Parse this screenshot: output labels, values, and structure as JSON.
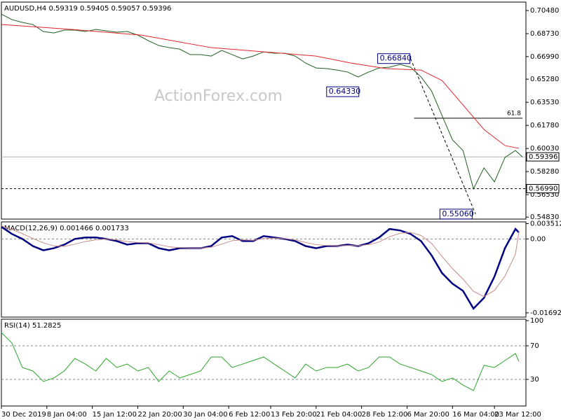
{
  "chart_data": [
    {
      "type": "line",
      "title": "AUDUSD,H4  0.59319 0.59405 0.59057 0.59396",
      "watermark": "ActionForex.com",
      "xlim": [
        0,
        150
      ],
      "ylim": [
        0.5468,
        0.7112
      ],
      "yticks": [
        {
          "value": 0.7048,
          "label": "0.70480"
        },
        {
          "value": 0.6873,
          "label": "0.68730"
        },
        {
          "value": 0.6699,
          "label": "0.66990"
        },
        {
          "value": 0.6528,
          "label": "0.65280"
        },
        {
          "value": 0.6353,
          "label": "0.63530"
        },
        {
          "value": 0.6178,
          "label": "0.61780"
        },
        {
          "value": 0.6003,
          "label": "0.60030"
        },
        {
          "value": 0.5828,
          "label": "0.58280"
        },
        {
          "value": 0.5653,
          "label": "0.56530"
        },
        {
          "value": 0.5483,
          "label": "0.54830"
        }
      ],
      "series": [
        {
          "color": "#1f5f1f",
          "width": 1,
          "x": [
            0,
            3,
            6,
            9,
            12,
            15,
            18,
            21,
            24,
            27,
            30,
            33,
            36,
            39,
            42,
            45,
            48,
            51,
            54,
            57,
            60,
            63,
            66,
            69,
            72,
            75,
            78,
            81,
            84,
            87,
            90,
            93,
            96,
            99,
            102,
            105,
            108,
            111,
            114,
            117,
            120,
            123,
            126,
            129,
            132,
            135,
            138,
            141,
            144,
            147,
            149
          ],
          "values": [
            0.7021,
            0.6979,
            0.6958,
            0.6942,
            0.6889,
            0.6878,
            0.69,
            0.69,
            0.6889,
            0.6905,
            0.6894,
            0.6884,
            0.6889,
            0.6862,
            0.682,
            0.6783,
            0.6767,
            0.6756,
            0.6714,
            0.6714,
            0.6703,
            0.6746,
            0.6714,
            0.6682,
            0.6703,
            0.6735,
            0.6725,
            0.6725,
            0.6703,
            0.665,
            0.6613,
            0.6608,
            0.6597,
            0.6582,
            0.6545,
            0.6582,
            0.6613,
            0.6619,
            0.664,
            0.6619,
            0.6545,
            0.6439,
            0.6253,
            0.6068,
            0.5988,
            0.5697,
            0.5856,
            0.575,
            0.5935,
            0.5988,
            0.59396
          ]
        },
        {
          "color": "#e0242a",
          "width": 1,
          "x": [
            0,
            20,
            40,
            60,
            80,
            90,
            100,
            110,
            120,
            126,
            132,
            138,
            144,
            148
          ],
          "values": [
            0.6942,
            0.6905,
            0.6862,
            0.6767,
            0.6725,
            0.6703,
            0.665,
            0.6608,
            0.6597,
            0.6518,
            0.6333,
            0.6147,
            0.6025,
            0.6004
          ]
        }
      ],
      "hlines": [
        {
          "value": 0.59396,
          "label": "0.59396",
          "style": "solid"
        },
        {
          "value": 0.5699,
          "label": "0.56990",
          "style": "dashed"
        }
      ],
      "annotations": [
        {
          "x": 93,
          "value": 0.6433,
          "label": "0.64330"
        },
        {
          "x": 107.6,
          "value": 0.6684,
          "label": "0.66840"
        },
        {
          "x": 125.4,
          "value": 0.5506,
          "label": "0.55060"
        }
      ],
      "zigzag": {
        "x": [
          117,
          135.6
        ],
        "values": [
          0.6684,
          0.5506
        ]
      },
      "fib": {
        "ratio": 61.8,
        "price": 0.6232,
        "x": [
          118,
          149
        ]
      }
    },
    {
      "type": "line",
      "title": "MACD(12,26,9) 0.001466 0.001733",
      "xlim": [
        0,
        150
      ],
      "ylim": [
        -0.0179,
        0.0039
      ],
      "yticks": [
        0.003512,
        {
          "value": 0,
          "label": "0.00"
        },
        -0.016921
      ],
      "levels": [
        0
      ],
      "series": [
        {
          "color": "#000080",
          "width": 2.5,
          "x": [
            0,
            3,
            6,
            9,
            12,
            15,
            18,
            21,
            24,
            27,
            30,
            33,
            36,
            39,
            42,
            45,
            48,
            51,
            54,
            57,
            60,
            63,
            66,
            69,
            72,
            75,
            78,
            81,
            84,
            87,
            90,
            93,
            96,
            99,
            102,
            105,
            108,
            111,
            114,
            117,
            120,
            123,
            126,
            129,
            132,
            135,
            138,
            141,
            144,
            147,
            148
          ],
          "values": [
            0.00277,
            0.00114,
            0,
            -0.00163,
            -0.0026,
            -0.00212,
            -0.0013,
            0,
            0.00033,
            0.00033,
            0,
            -0.00049,
            -0.0013,
            -0.00098,
            -0.00098,
            -0.00212,
            -0.0026,
            -0.00212,
            -0.00212,
            -0.00212,
            -0.00163,
            0.00033,
            0.00065,
            -0.00049,
            -0.00049,
            0.00065,
            0.00033,
            0,
            -0.00049,
            -0.00163,
            -0.00212,
            -0.00163,
            -0.00163,
            -0.0013,
            -0.00163,
            -0.00098,
            0.00033,
            0.00228,
            0.00195,
            0.00114,
            -0.00049,
            -0.00374,
            -0.00781,
            -0.01025,
            -0.01188,
            -0.01595,
            -0.0135,
            -0.00862,
            -0.00212,
            0.00228,
            0.001466
          ]
        },
        {
          "color": "#c98a8a",
          "width": 1,
          "x": [
            0,
            3,
            6,
            9,
            12,
            15,
            18,
            21,
            24,
            27,
            30,
            33,
            36,
            39,
            42,
            45,
            48,
            51,
            54,
            57,
            60,
            63,
            66,
            69,
            72,
            75,
            78,
            81,
            84,
            87,
            90,
            93,
            96,
            99,
            102,
            105,
            108,
            111,
            114,
            117,
            120,
            123,
            126,
            129,
            132,
            135,
            138,
            141,
            144,
            147,
            148
          ],
          "values": [
            0.003,
            0.0022,
            0.0012,
            0.0001,
            -0.0009,
            -0.0016,
            -0.0017,
            -0.0012,
            -0.0006,
            -0.0002,
            0,
            -0.0002,
            -0.0006,
            -0.0008,
            -0.0009,
            -0.0013,
            -0.0018,
            -0.002,
            -0.0021,
            -0.0021,
            -0.0019,
            -0.0012,
            -0.0004,
            -0.0002,
            -0.0003,
            0.0001,
            0.0002,
            0.0001,
            -0.0002,
            -0.0008,
            -0.0013,
            -0.0015,
            -0.0016,
            -0.0015,
            -0.0015,
            -0.0013,
            -0.0007,
            0.0005,
            0.0013,
            0.0015,
            0.0008,
            -0.001,
            -0.004,
            -0.0068,
            -0.0092,
            -0.012,
            -0.0132,
            -0.0118,
            -0.0085,
            -0.0035,
            0.001733
          ]
        }
      ]
    },
    {
      "type": "line",
      "title": "RSI(14) 51.2825",
      "xlim": [
        0,
        150
      ],
      "ylim": [
        -1.7,
        101.7
      ],
      "yticks": [
        100,
        70,
        30
      ],
      "levels": [
        70,
        30
      ],
      "xticks": [
        {
          "value": 0,
          "label": "30 Dec 2019"
        },
        {
          "value": 13,
          "label": "8 Jan 04:00"
        },
        {
          "value": 26,
          "label": "15 Jan 12:00"
        },
        {
          "value": 39,
          "label": "22 Jan 20:00"
        },
        {
          "value": 52,
          "label": "30 Jan 04:00"
        },
        {
          "value": 65,
          "label": "6 Feb 12:00"
        },
        {
          "value": 77,
          "label": "13 Feb 20:00"
        },
        {
          "value": 90,
          "label": "21 Feb 04:00"
        },
        {
          "value": 103,
          "label": "28 Feb 12:00"
        },
        {
          "value": 116,
          "label": "6 Mar 20:00"
        },
        {
          "value": 129,
          "label": "16 Mar 04:00"
        },
        {
          "value": 141,
          "label": "23 Mar 12:00"
        }
      ],
      "series": [
        {
          "color": "#2aa52a",
          "width": 1,
          "x": [
            0,
            3,
            6,
            9,
            12,
            15,
            18,
            21,
            24,
            27,
            30,
            33,
            36,
            39,
            42,
            45,
            48,
            51,
            54,
            57,
            60,
            63,
            66,
            69,
            72,
            75,
            78,
            81,
            84,
            87,
            90,
            93,
            96,
            99,
            102,
            105,
            108,
            111,
            114,
            117,
            120,
            123,
            126,
            129,
            132,
            135,
            138,
            141,
            144,
            147,
            148
          ],
          "values": [
            85.8,
            73.3,
            44.2,
            40,
            27.5,
            31.7,
            40,
            55,
            48.3,
            40,
            55,
            44.2,
            48.3,
            40,
            44.2,
            27.5,
            40,
            31.7,
            35.8,
            40,
            56.7,
            56.7,
            44.2,
            48.3,
            52.5,
            56.7,
            48.3,
            40,
            31.7,
            48.3,
            40,
            44.2,
            44.2,
            48.3,
            40,
            44.2,
            56.7,
            56.7,
            48.3,
            44.2,
            40,
            35.8,
            27.5,
            31.7,
            23.3,
            16.7,
            46.7,
            44.2,
            52.5,
            60.8,
            51.2825
          ]
        }
      ]
    }
  ]
}
